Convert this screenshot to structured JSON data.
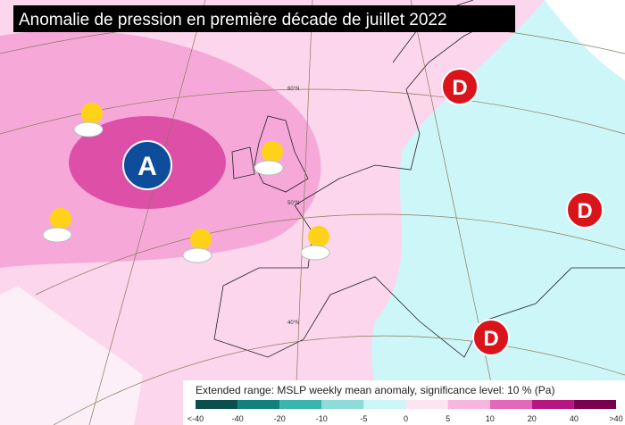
{
  "header": {
    "title": "Anomalie de pression en première décade de juillet 2022"
  },
  "markers": [
    {
      "label": "A"
    },
    {
      "label": "D"
    },
    {
      "label": "D"
    },
    {
      "label": "D"
    }
  ],
  "latitudes": [
    "60°N",
    "50°N",
    "40°N"
  ],
  "legend": {
    "caption": "Extended range: MSLP weekly mean anomaly, significance level: 10 % (Pa)",
    "labels": [
      "<-40",
      "-40",
      "-20",
      "-10",
      "-5",
      "0",
      "5",
      "10",
      "20",
      "40",
      ">40"
    ]
  }
}
